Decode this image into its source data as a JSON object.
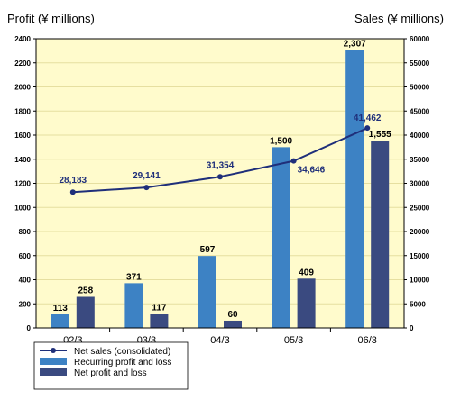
{
  "chart_data": {
    "type": "bar",
    "categories": [
      "02/3",
      "03/3",
      "04/3",
      "05/3",
      "06/3"
    ],
    "left_axis_label": "Profit (¥ millions)",
    "right_axis_label": "Sales (¥ millions)",
    "left_ylim": [
      0,
      2400
    ],
    "left_ticks": [
      "0",
      "200",
      "400",
      "600",
      "800",
      "1000",
      "1200",
      "1400",
      "1600",
      "1800",
      "2000",
      "2200",
      "2400"
    ],
    "right_ylim": [
      0,
      60000
    ],
    "right_ticks": [
      "0",
      "5000",
      "10000",
      "15000",
      "20000",
      "25000",
      "30000",
      "35000",
      "40000",
      "45000",
      "50000",
      "55000",
      "60000"
    ],
    "grid": true,
    "legend_position": "bottom-left",
    "series": [
      {
        "name": "Net sales (consolidated)",
        "type": "line",
        "axis": "right",
        "values": [
          28183,
          29141,
          31354,
          34646,
          41462
        ],
        "labels": [
          "28,183",
          "29,141",
          "31,354",
          "34,646",
          "41,462"
        ],
        "color": "#1f2f7a"
      },
      {
        "name": "Recurring profit and loss",
        "type": "bar",
        "axis": "left",
        "values": [
          113,
          371,
          597,
          1500,
          2307
        ],
        "labels": [
          "113",
          "371",
          "597",
          "1,500",
          "2,307"
        ],
        "color": "#3d82c4"
      },
      {
        "name": "Net profit and loss",
        "type": "bar",
        "axis": "left",
        "values": [
          258,
          117,
          60,
          409,
          1555
        ],
        "labels": [
          "258",
          "117",
          "60",
          "409",
          "1,555"
        ],
        "color": "#3a4a80"
      }
    ],
    "plot_background": "#fffbcc"
  }
}
